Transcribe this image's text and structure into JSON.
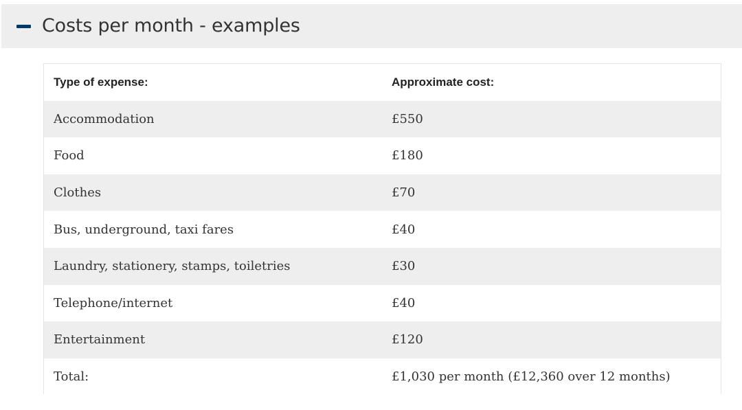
{
  "section": {
    "title": "Costs per month - examples",
    "expanded_icon": "minus-icon",
    "icon_color": "#003a6b"
  },
  "table": {
    "headers": [
      "Type of expense:",
      "Approximate cost:"
    ],
    "rows": [
      [
        "Accommodation",
        "£550"
      ],
      [
        "Food",
        "£180"
      ],
      [
        "Clothes",
        "£70"
      ],
      [
        "Bus, underground, taxi fares",
        "£40"
      ],
      [
        "Laundry, stationery, stamps, toiletries",
        "£30"
      ],
      [
        "Telephone/internet",
        "£40"
      ],
      [
        "Entertainment",
        "£120"
      ],
      [
        "Total:",
        "£1,030 per month (£12,360 over 12 months)"
      ]
    ]
  }
}
